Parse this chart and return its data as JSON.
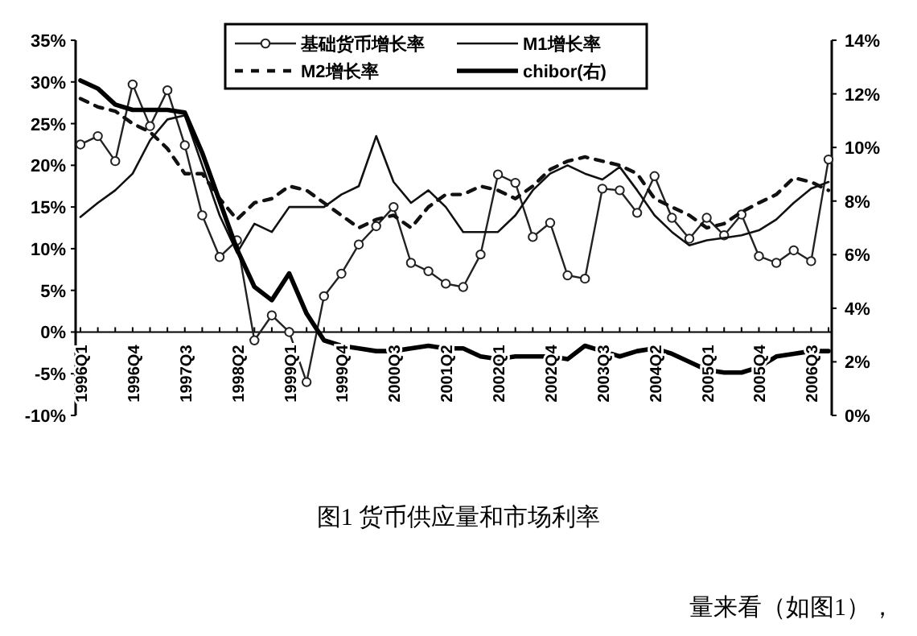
{
  "chart_data": {
    "type": "line",
    "title": "图1 货币供应量和市场利率",
    "annotations": [
      "量来看（如图1），"
    ],
    "categories": [
      "1996Q1",
      null,
      null,
      "1996Q4",
      null,
      null,
      "1997Q3",
      null,
      null,
      "1998Q2",
      null,
      null,
      "1999Q1",
      null,
      null,
      "1999Q4",
      null,
      null,
      "2000Q3",
      null,
      null,
      "2001Q2",
      null,
      null,
      "2002Q1",
      null,
      null,
      "2002Q4",
      null,
      null,
      "2003Q3",
      null,
      null,
      "2004Q2",
      null,
      null,
      "2005Q1",
      null,
      null,
      "2005Q4",
      null,
      null,
      "2006Q3",
      null
    ],
    "series": [
      {
        "name": "基础货币增长率",
        "color": "#222222",
        "marker": "circle",
        "line_style": "solid",
        "values": [
          22.5,
          23.5,
          20.5,
          29.7,
          24.7,
          29,
          22.4,
          14,
          9,
          11,
          -1,
          2,
          0,
          -6,
          4.3,
          7,
          10.5,
          12.7,
          15,
          8.3,
          7.3,
          5.8,
          5.4,
          9.3,
          18.9,
          17.9,
          11.4,
          13.1,
          6.8,
          6.4,
          17.2,
          17,
          14.3,
          18.7,
          13.7,
          11.2,
          13.7,
          11.6,
          14.1,
          9.1,
          8.3,
          9.8,
          8.5,
          20.7
        ]
      },
      {
        "name": "M1增长率",
        "color": "#111111",
        "marker": "none",
        "line_style": "solid",
        "values": [
          13.8,
          15.5,
          17,
          19,
          23,
          25.5,
          26,
          20,
          14,
          9.5,
          13,
          12,
          15,
          15,
          15,
          16.5,
          17.5,
          23.5,
          18,
          15.5,
          17,
          15,
          12,
          12,
          12,
          14,
          17,
          19,
          20,
          19,
          18.3,
          19.8,
          17,
          14,
          12,
          10.4,
          11,
          11.3,
          11.6,
          12.2,
          13.5,
          15.5,
          17.2,
          18
        ]
      },
      {
        "name": "M2增长率",
        "color": "#111111",
        "marker": "none",
        "line_style": "dashed",
        "values": [
          28,
          27,
          26.5,
          25,
          24,
          22,
          19,
          19,
          16,
          13.5,
          15.5,
          16,
          17.5,
          17,
          15.5,
          14,
          12.5,
          13.5,
          14,
          12.5,
          15,
          16.5,
          16.5,
          17.5,
          17,
          16,
          17.5,
          19.5,
          20.5,
          21,
          20.5,
          20,
          19,
          16,
          15,
          14,
          12.5,
          13,
          14.4,
          15.5,
          16.5,
          18.5,
          18,
          17
        ]
      },
      {
        "name": "chibor(右)",
        "color": "#000000",
        "marker": "none",
        "line_style": "solid",
        "axis": "y2",
        "values": [
          12.5,
          12.2,
          11.6,
          11.4,
          11.4,
          11.4,
          11.3,
          9.8,
          8,
          6.2,
          4.8,
          4.3,
          5.3,
          3.8,
          2.8,
          2.6,
          2.5,
          2.4,
          2.4,
          2.5,
          2.6,
          2.5,
          2.5,
          2.2,
          2.1,
          2.2,
          2.2,
          2.2,
          2.1,
          2.6,
          2.4,
          2.2,
          2.4,
          2.5,
          2.3,
          2.0,
          1.7,
          1.6,
          1.6,
          1.8,
          2.2,
          2.3,
          2.4,
          2.4
        ]
      }
    ],
    "ylim": [
      -10,
      35
    ],
    "yticks": [
      {
        "value": -10,
        "label": "-10%"
      },
      {
        "value": -5,
        "label": "-5%"
      },
      {
        "value": 0,
        "label": "0%"
      },
      {
        "value": 5,
        "label": "5%"
      },
      {
        "value": 10,
        "label": "10%"
      },
      {
        "value": 15,
        "label": "15%"
      },
      {
        "value": 20,
        "label": "20%"
      },
      {
        "value": 25,
        "label": "25%"
      },
      {
        "value": 30,
        "label": "30%"
      },
      {
        "value": 35,
        "label": "35%"
      }
    ],
    "y2lim": [
      0,
      14
    ],
    "y2ticks": [
      {
        "value": 0,
        "label": "0%"
      },
      {
        "value": 2,
        "label": "2%"
      },
      {
        "value": 4,
        "label": "4%"
      },
      {
        "value": 6,
        "label": "6%"
      },
      {
        "value": 8,
        "label": "8%"
      },
      {
        "value": 10,
        "label": "10%"
      },
      {
        "value": 12,
        "label": "12%"
      },
      {
        "value": 14,
        "label": "14%"
      }
    ],
    "grid": false,
    "legend": "top"
  }
}
